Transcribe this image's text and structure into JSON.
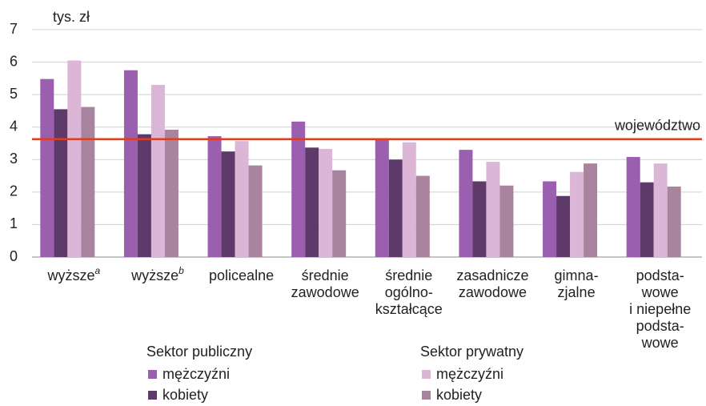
{
  "chart_data": {
    "type": "bar",
    "y_unit": "tys. zł",
    "categories": [
      [
        "wyższe"
      ],
      [
        "wyższe"
      ],
      [
        "policealne"
      ],
      [
        "średnie",
        "zawodowe"
      ],
      [
        "średnie",
        "ogólno-",
        "kształcące"
      ],
      [
        "zasadnicze",
        "zawodowe"
      ],
      [
        "gimna-",
        "zjalne"
      ],
      [
        "podsta-",
        "wowe",
        "i niepełne",
        "podsta-",
        "wowe"
      ]
    ],
    "category_notes": [
      "a",
      "b",
      null,
      null,
      null,
      null,
      null,
      null
    ],
    "series": [
      {
        "name": "mężczyźni",
        "group": "Sektor publiczny",
        "color": "#9b5fb0",
        "values": [
          5.48,
          5.75,
          3.72,
          4.17,
          3.63,
          3.3,
          2.33,
          3.08
        ]
      },
      {
        "name": "kobiety",
        "group": "Sektor publiczny",
        "color": "#5e3a6b",
        "values": [
          4.55,
          3.78,
          3.25,
          3.37,
          3.0,
          2.33,
          1.88,
          2.3
        ]
      },
      {
        "name": "mężczyźni",
        "group": "Sektor prywatny",
        "color": "#dcb6d6",
        "values": [
          6.05,
          5.3,
          3.57,
          3.33,
          3.53,
          2.93,
          2.62,
          2.88
        ]
      },
      {
        "name": "kobiety",
        "group": "Sektor prywatny",
        "color": "#a9849f",
        "values": [
          4.62,
          3.92,
          2.82,
          2.67,
          2.5,
          2.2,
          2.88,
          2.17
        ]
      }
    ],
    "reference_line": {
      "label": "województwo",
      "value": 3.63,
      "color": "#e03c1f"
    },
    "ylim": [
      0,
      7
    ],
    "yticks": [
      0,
      1,
      2,
      3,
      4,
      5,
      6,
      7
    ],
    "grid": true
  }
}
